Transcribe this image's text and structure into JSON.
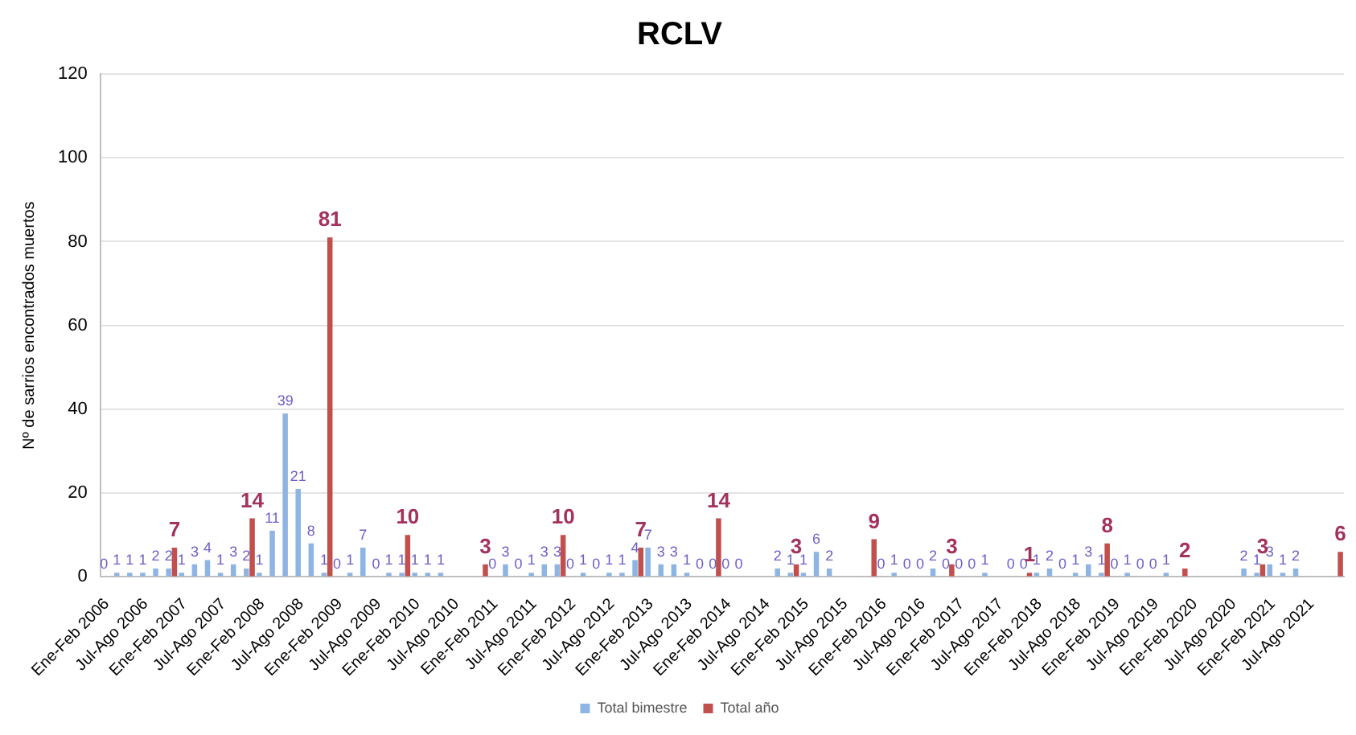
{
  "chart_data": {
    "type": "bar",
    "title": "RCLV",
    "ylabel": "Nº de sarrios encontrados muertos",
    "categories": [
      "Ene-Feb 2006",
      null,
      null,
      "Jul-Ago 2006",
      null,
      null,
      "Ene-Feb 2007",
      null,
      null,
      "Jul-Ago 2007",
      null,
      null,
      "Ene-Feb 2008",
      null,
      null,
      "Jul-Ago 2008",
      null,
      null,
      "Ene-Feb 2009",
      null,
      null,
      "Jul-Ago 2009",
      null,
      null,
      "Ene-Feb 2010",
      null,
      null,
      "Jul-Ago 2010",
      null,
      null,
      "Ene-Feb 2011",
      null,
      null,
      "Jul-Ago 2011",
      null,
      null,
      "Ene-Feb 2012",
      null,
      null,
      "Jul-Ago 2012",
      null,
      null,
      "Ene-Feb 2013",
      null,
      null,
      "Jul-Ago 2013",
      null,
      null,
      "Ene-Feb 2014",
      null,
      null,
      "Jul-Ago 2014",
      null,
      null,
      "Ene-Feb 2015",
      null,
      null,
      "Jul-Ago 2015",
      null,
      null,
      "Ene-Feb 2016",
      null,
      null,
      "Jul-Ago 2016",
      null,
      null,
      "Ene-Feb 2017",
      null,
      null,
      "Jul-Ago 2017",
      null,
      null,
      "Ene-Feb 2018",
      null,
      null,
      "Jul-Ago 2018",
      null,
      null,
      "Ene-Feb 2019",
      null,
      null,
      "Jul-Ago 2019",
      null,
      null,
      "Ene-Feb 2020",
      null,
      null,
      "Jul-Ago 2020",
      null,
      null,
      "Ene-Feb 2021",
      null,
      null,
      "Jul-Ago 2021",
      null,
      null
    ],
    "series": [
      {
        "name": "Total bimestre",
        "color": "#8eb4e3",
        "values": [
          0,
          1,
          1,
          1,
          2,
          2,
          1,
          3,
          4,
          1,
          3,
          2,
          1,
          11,
          39,
          21,
          8,
          1,
          0,
          1,
          7,
          0,
          1,
          1,
          1,
          1,
          1,
          null,
          null,
          null,
          0,
          3,
          0,
          1,
          3,
          3,
          0,
          1,
          0,
          1,
          1,
          4,
          7,
          3,
          3,
          1,
          0,
          0,
          0,
          0,
          null,
          null,
          2,
          1,
          1,
          6,
          2,
          null,
          null,
          null,
          0,
          1,
          0,
          0,
          2,
          0,
          0,
          0,
          1,
          null,
          0,
          0,
          1,
          2,
          0,
          1,
          3,
          1,
          0,
          1,
          0,
          0,
          1,
          null,
          null,
          null,
          null,
          null,
          2,
          1,
          3,
          1,
          2,
          null,
          null,
          null
        ]
      },
      {
        "name": "Total año",
        "color": "#c0504d",
        "values": [
          null,
          null,
          null,
          null,
          null,
          7,
          null,
          null,
          null,
          null,
          null,
          14,
          null,
          null,
          null,
          null,
          null,
          81,
          null,
          null,
          null,
          null,
          null,
          10,
          null,
          null,
          null,
          null,
          null,
          3,
          null,
          null,
          null,
          null,
          null,
          10,
          null,
          null,
          null,
          null,
          null,
          7,
          null,
          null,
          null,
          null,
          null,
          14,
          null,
          null,
          null,
          null,
          null,
          3,
          null,
          null,
          null,
          null,
          null,
          9,
          null,
          null,
          null,
          null,
          null,
          3,
          null,
          null,
          null,
          null,
          null,
          1,
          null,
          null,
          null,
          null,
          null,
          8,
          null,
          null,
          null,
          null,
          null,
          2,
          null,
          null,
          null,
          null,
          null,
          3,
          null,
          null,
          null,
          null,
          null,
          6
        ]
      }
    ],
    "ylim": [
      0,
      120
    ],
    "yticks": [
      0,
      20,
      40,
      60,
      80,
      100,
      120
    ],
    "grid": "y",
    "legend": "bottom",
    "data_labels": true
  }
}
